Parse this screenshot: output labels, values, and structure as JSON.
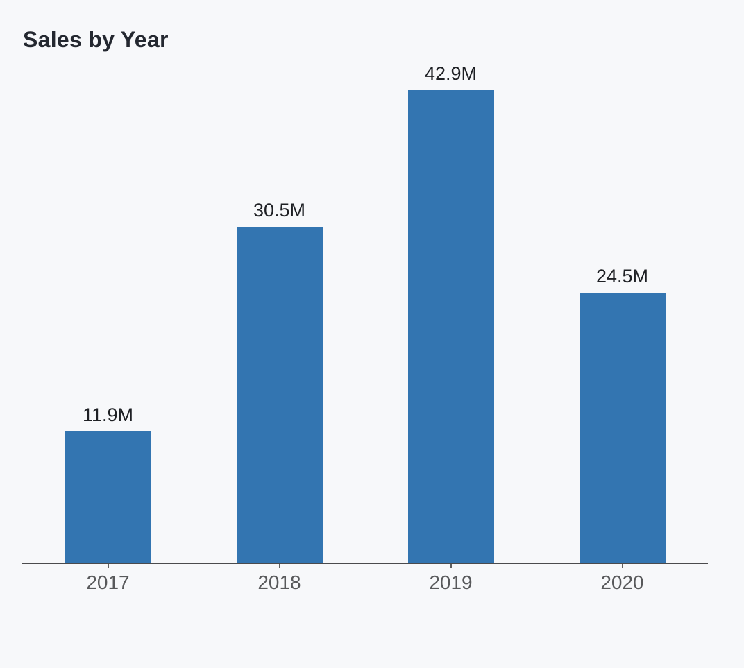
{
  "title": "Sales by Year",
  "chart_data": {
    "type": "bar",
    "title": "Sales by Year",
    "categories": [
      "2017",
      "2018",
      "2019",
      "2020"
    ],
    "values": [
      11.9,
      30.5,
      42.9,
      24.5
    ],
    "value_labels": [
      "11.9M",
      "30.5M",
      "42.9M",
      "24.5M"
    ],
    "unit": "M",
    "xlabel": "",
    "ylabel": "",
    "ylim": [
      0,
      45
    ],
    "grid": false,
    "legend": "none",
    "y_axis_visible": false,
    "colors": {
      "bar": "#3375b1",
      "background": "#f7f8fa",
      "axis": "#4b4b4d",
      "tick": "#606060",
      "x_label": "#58595b",
      "value_label": "#1e2024",
      "title": "#242830"
    }
  }
}
